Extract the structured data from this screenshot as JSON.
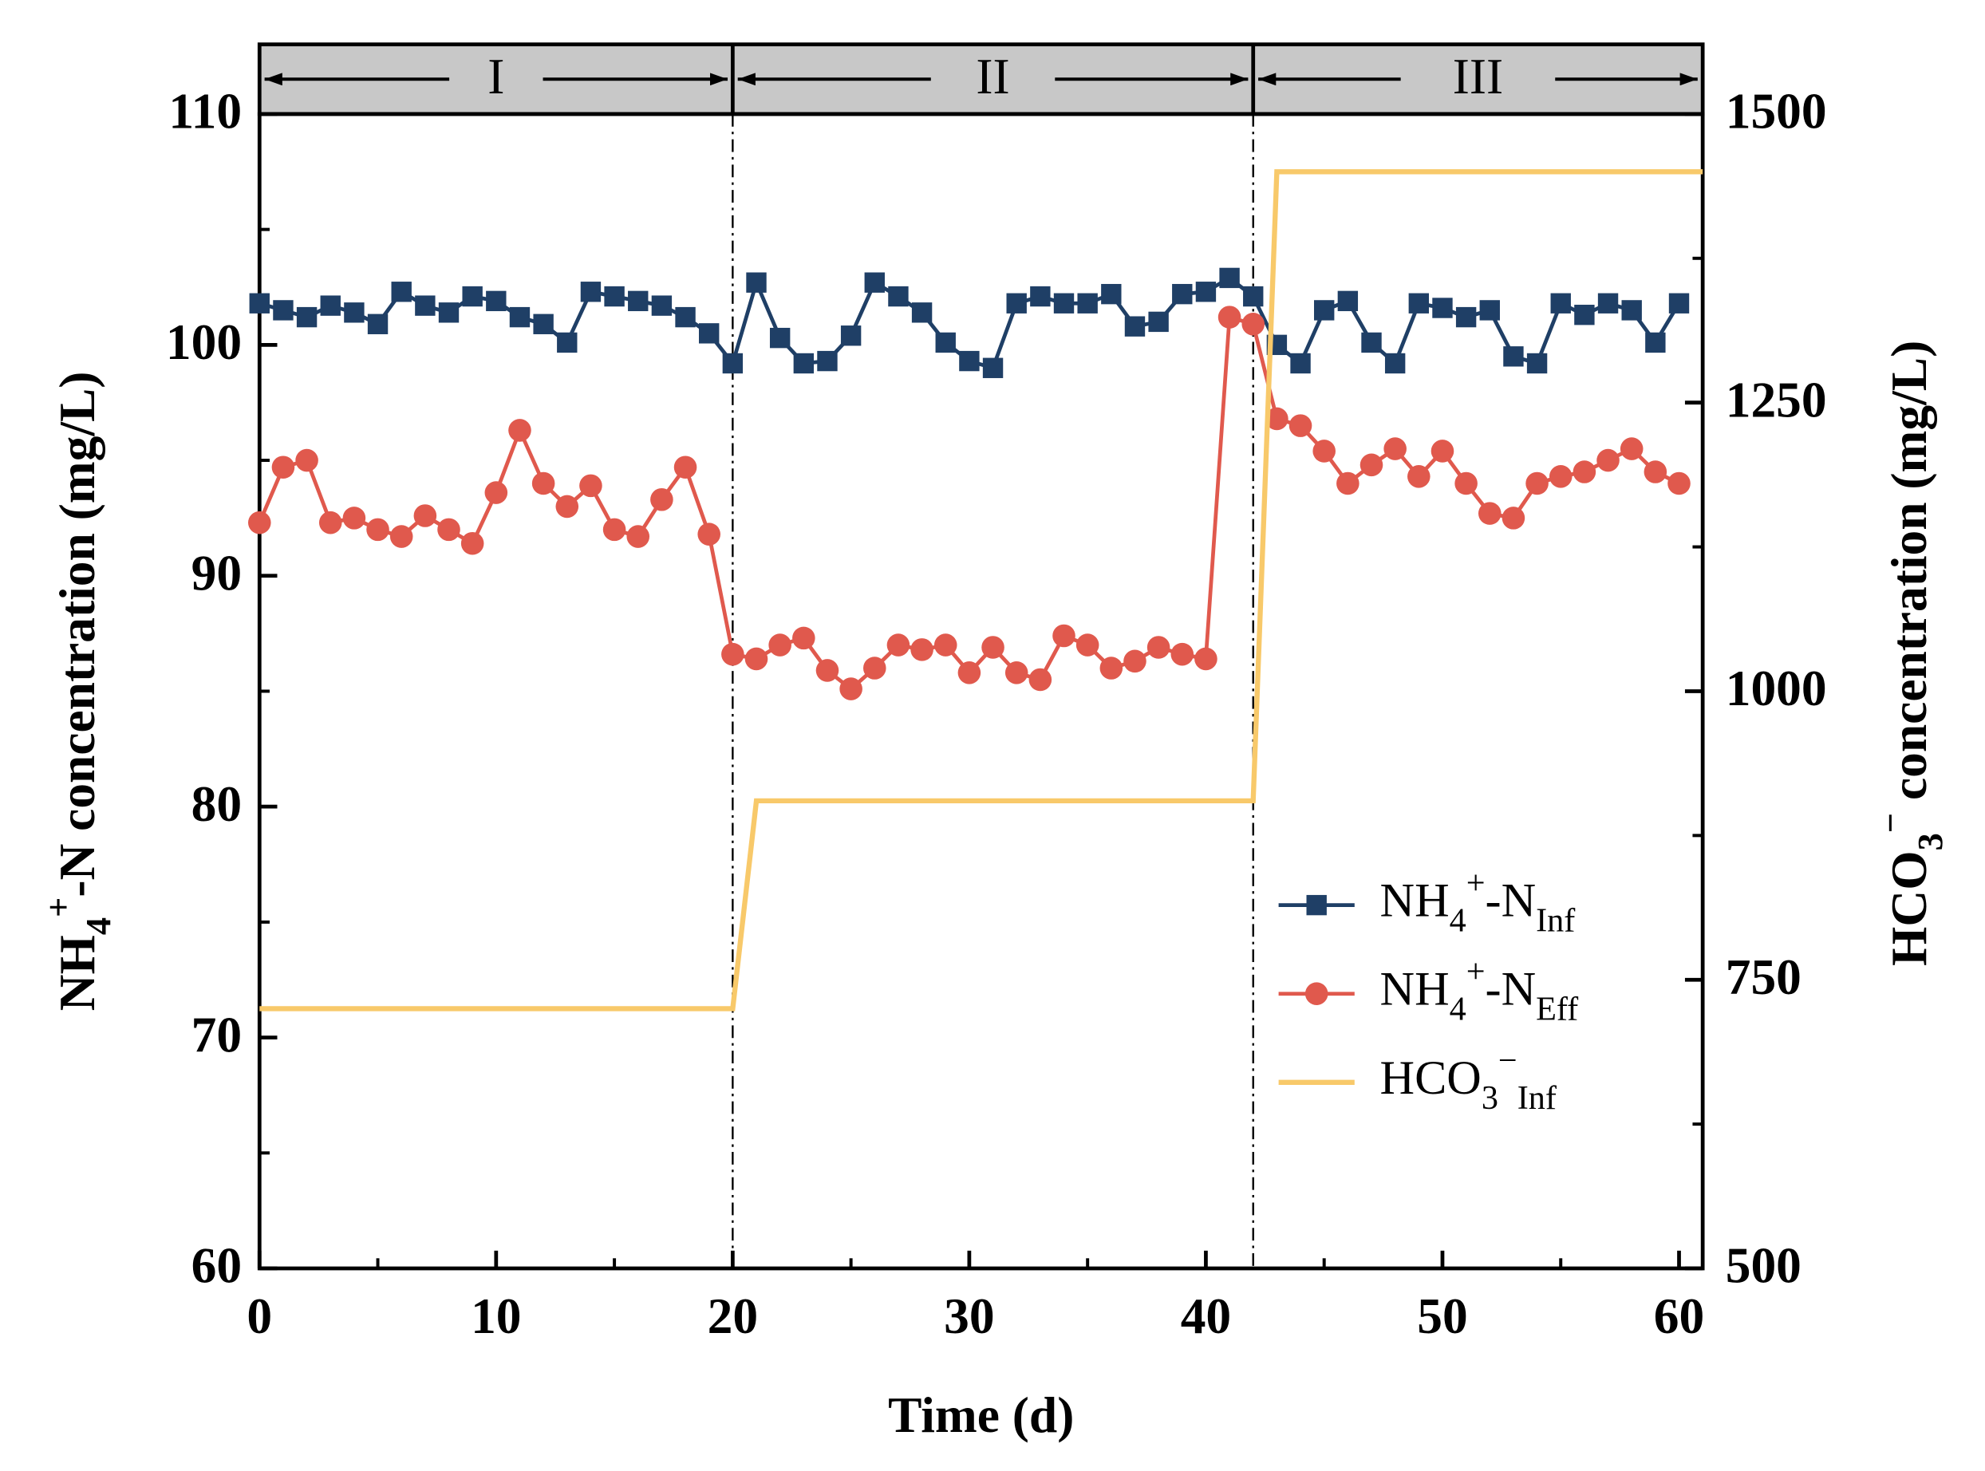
{
  "chart_data": {
    "type": "line",
    "xlabel": "Time (d)",
    "ylabel": "NH4+-N concentration (mg/L)",
    "y2label": "HCO3− concentration (mg/L)",
    "xlim": [
      0,
      61
    ],
    "xticks": [
      0,
      10,
      20,
      30,
      40,
      50,
      60
    ],
    "ylim": [
      60,
      110
    ],
    "yticks": [
      60,
      70,
      80,
      90,
      100,
      110
    ],
    "y2lim": [
      500,
      1500
    ],
    "y2ticks": [
      500,
      750,
      1000,
      1250,
      1500
    ],
    "phases": [
      {
        "label": "I",
        "start": 0,
        "end": 20
      },
      {
        "label": "II",
        "start": 20,
        "end": 42
      },
      {
        "label": "III",
        "start": 42,
        "end": 61
      }
    ],
    "series": [
      {
        "name": "NH4+-NInf",
        "color": "#1f3f66",
        "marker": "square",
        "x": [
          0,
          1,
          2,
          3,
          4,
          5,
          6,
          7,
          8,
          9,
          10,
          11,
          12,
          13,
          14,
          15,
          16,
          17,
          18,
          19,
          20,
          21,
          22,
          23,
          24,
          25,
          26,
          27,
          28,
          29,
          30,
          31,
          32,
          33,
          34,
          35,
          36,
          37,
          38,
          39,
          40,
          41,
          42,
          43,
          44,
          45,
          46,
          47,
          48,
          49,
          50,
          51,
          52,
          53,
          54,
          55,
          56,
          57,
          58,
          59,
          60
        ],
        "values": [
          101.8,
          101.5,
          101.2,
          101.7,
          101.4,
          100.9,
          102.3,
          101.7,
          101.4,
          102.1,
          101.9,
          101.2,
          100.9,
          100.1,
          102.3,
          102.1,
          101.9,
          101.7,
          101.2,
          100.5,
          99.2,
          102.7,
          100.3,
          99.2,
          99.3,
          100.4,
          102.7,
          102.1,
          101.4,
          100.1,
          99.3,
          99.0,
          101.8,
          102.1,
          101.8,
          101.8,
          102.2,
          100.8,
          101.0,
          102.2,
          102.3,
          102.9,
          102.1,
          100.0,
          99.2,
          101.5,
          101.9,
          100.1,
          99.2,
          101.8,
          101.6,
          101.2,
          101.5,
          99.5,
          99.2,
          101.8,
          101.3,
          101.8,
          101.5,
          100.1,
          101.8
        ]
      },
      {
        "name": "NH4+-NEff",
        "color": "#e0594d",
        "marker": "circle",
        "x": [
          0,
          1,
          2,
          3,
          4,
          5,
          6,
          7,
          8,
          9,
          10,
          11,
          12,
          13,
          14,
          15,
          16,
          17,
          18,
          19,
          20,
          21,
          22,
          23,
          24,
          25,
          26,
          27,
          28,
          29,
          30,
          31,
          32,
          33,
          34,
          35,
          36,
          37,
          38,
          39,
          40,
          41,
          42,
          43,
          44,
          45,
          46,
          47,
          48,
          49,
          50,
          51,
          52,
          53,
          54,
          55,
          56,
          57,
          58,
          59,
          60
        ],
        "values": [
          92.3,
          94.7,
          95.0,
          92.3,
          92.5,
          92.0,
          91.7,
          92.6,
          92.0,
          91.4,
          93.6,
          96.3,
          94.0,
          93.0,
          93.9,
          92.0,
          91.7,
          93.3,
          94.7,
          91.8,
          86.6,
          86.4,
          87.0,
          87.3,
          85.9,
          85.1,
          86.0,
          87.0,
          86.8,
          87.0,
          85.8,
          86.9,
          85.8,
          85.5,
          87.4,
          87.0,
          86.0,
          86.3,
          86.9,
          86.6,
          86.4,
          101.2,
          100.9,
          96.8,
          96.5,
          95.4,
          94.0,
          94.8,
          95.5,
          94.3,
          95.4,
          94.0,
          92.7,
          92.5,
          94.0,
          94.3,
          94.5,
          95.0,
          95.5,
          94.5,
          94.0
        ]
      },
      {
        "name": "HCO3−Inf",
        "color": "#f8c96a",
        "axis": "y2",
        "x": [
          0,
          20,
          21,
          42,
          43,
          61
        ],
        "values": [
          725,
          725,
          905,
          905,
          1450,
          1450
        ]
      }
    ]
  }
}
